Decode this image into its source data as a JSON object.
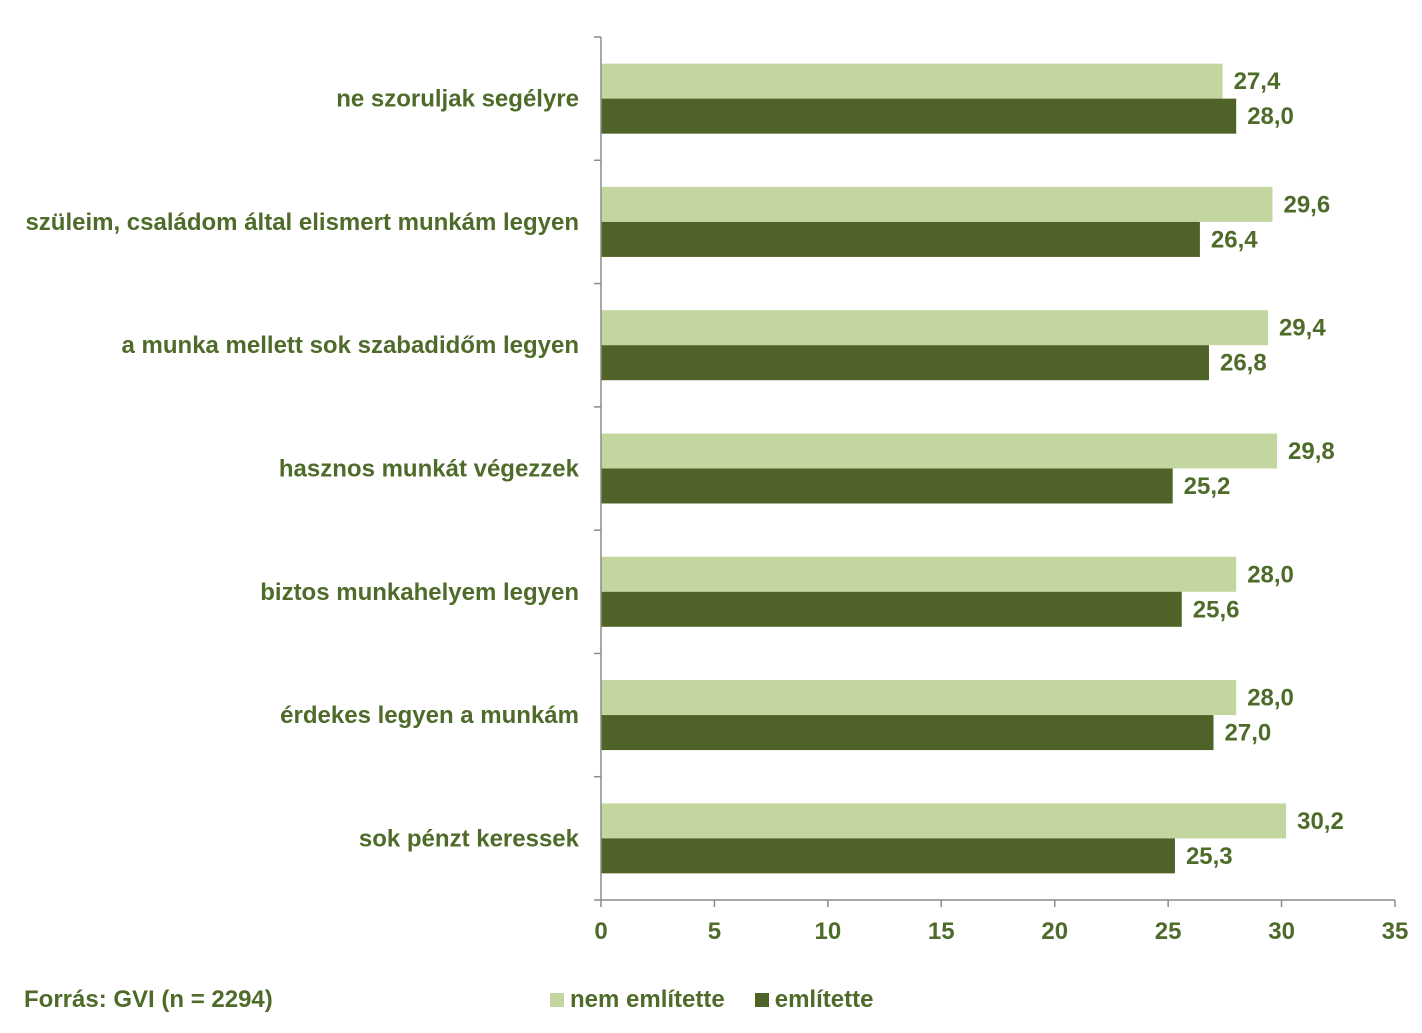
{
  "chart_data": {
    "type": "bar",
    "orientation": "horizontal",
    "categories": [
      "ne szoruljak segélyre",
      "szüleim, családom által elismert munkám legyen",
      "a munka mellett sok szabadidőm legyen",
      "hasznos munkát végezzek",
      "biztos munkahelyem legyen",
      "érdekes legyen a munkám",
      "sok pénzt keressek"
    ],
    "series": [
      {
        "name": "nem említette",
        "color": "#c4d6a0",
        "values": [
          27.4,
          29.6,
          29.4,
          29.8,
          28.0,
          28.0,
          30.2
        ],
        "labels": [
          "27,4",
          "29,6",
          "29,4",
          "29,8",
          "28,0",
          "28,0",
          "30,2"
        ]
      },
      {
        "name": "említette",
        "color": "#4f6228",
        "values": [
          28.0,
          26.4,
          26.8,
          25.2,
          25.6,
          27.0,
          25.3
        ],
        "labels": [
          "28,0",
          "26,4",
          "26,8",
          "25,2",
          "25,6",
          "27,0",
          "25,3"
        ]
      }
    ],
    "xlim": [
      0,
      35
    ],
    "xticks": [
      "0",
      "5",
      "10",
      "15",
      "20",
      "25",
      "30",
      "35"
    ],
    "grid": false,
    "legend_position": "bottom",
    "source": "Forrás: GVI (n = 2294)",
    "text_color": "#4e6b2a"
  }
}
